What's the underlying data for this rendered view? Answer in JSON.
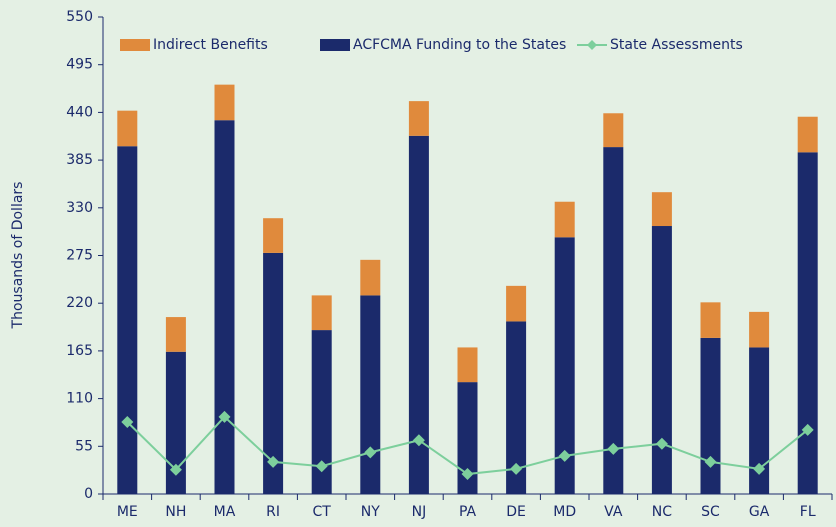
{
  "chart_data": {
    "type": "bar",
    "stacked": true,
    "y_label": "Thousands of Dollars",
    "categories": [
      "ME",
      "NH",
      "MA",
      "RI",
      "CT",
      "NY",
      "NJ",
      "PA",
      "DE",
      "MD",
      "VA",
      "NC",
      "SC",
      "GA",
      "FL"
    ],
    "series": [
      {
        "name": "Indirect Benefits",
        "color": "#e08a3c",
        "type": "bar",
        "stack_order": 2,
        "values": [
          41,
          40,
          41,
          40,
          40,
          41,
          40,
          40,
          41,
          41,
          39,
          39,
          41,
          41,
          41
        ]
      },
      {
        "name": "ACFCMA Funding to the States",
        "color": "#1b2a6b",
        "type": "bar",
        "stack_order": 1,
        "values": [
          401,
          164,
          431,
          278,
          189,
          229,
          413,
          129,
          199,
          296,
          400,
          309,
          180,
          169,
          394
        ]
      },
      {
        "name": "State Assessments",
        "color": "#7dcf9c",
        "type": "line",
        "values": [
          83,
          28,
          89,
          37,
          32,
          48,
          62,
          23,
          29,
          44,
          52,
          58,
          37,
          29,
          74
        ]
      }
    ],
    "ylim": [
      0,
      550
    ],
    "yticks": [
      0,
      55,
      110,
      165,
      220,
      275,
      330,
      385,
      440,
      495,
      550
    ],
    "legend": "top"
  }
}
